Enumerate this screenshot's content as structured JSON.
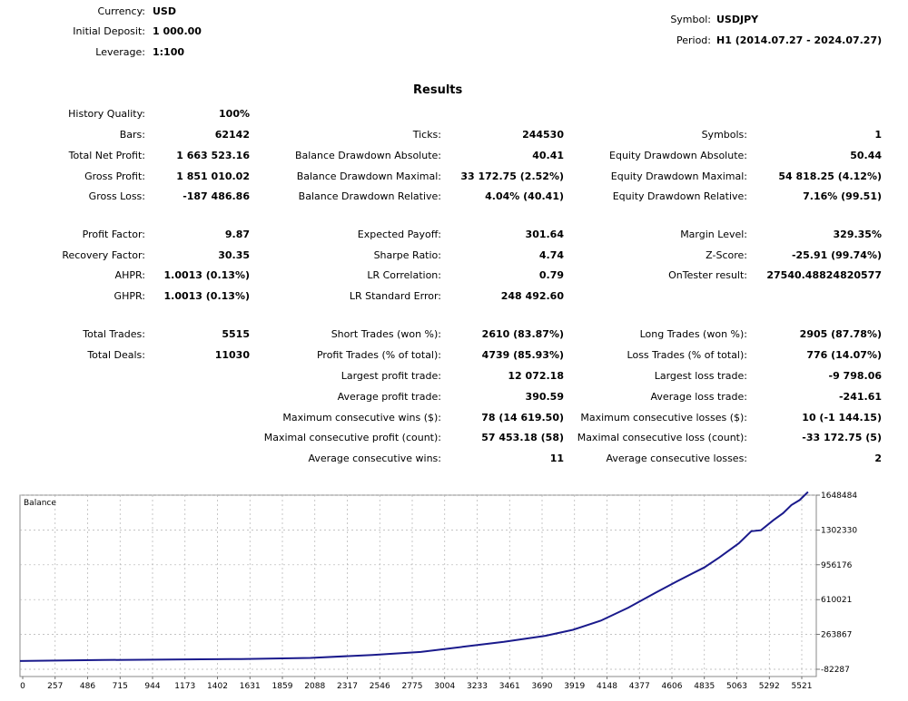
{
  "header": {
    "currency_label": "Currency:",
    "currency_value": "USD",
    "deposit_label": "Initial Deposit:",
    "deposit_value": "1 000.00",
    "leverage_label": "Leverage:",
    "leverage_value": "1:100",
    "symbol_label": "Symbol:",
    "symbol_value": "USDJPY",
    "period_label": "Period:",
    "period_value": "H1 (2014.07.27 - 2024.07.27)"
  },
  "results_title": "Results",
  "history_quality": {
    "label": "History Quality:",
    "value": "100%"
  },
  "stats": {
    "col1": [
      {
        "label": "Bars:",
        "value": "62142"
      },
      {
        "label": "Total Net Profit:",
        "value": "1 663 523.16"
      },
      {
        "label": "Gross Profit:",
        "value": "1 851 010.02"
      },
      {
        "label": "Gross Loss:",
        "value": "-187 486.86"
      },
      {
        "label": "Profit Factor:",
        "value": "9.87"
      },
      {
        "label": "Recovery Factor:",
        "value": "30.35"
      },
      {
        "label": "AHPR:",
        "value": "1.0013 (0.13%)"
      },
      {
        "label": "GHPR:",
        "value": "1.0013 (0.13%)"
      },
      {
        "label": "Total Trades:",
        "value": "5515"
      },
      {
        "label": "Total Deals:",
        "value": "11030"
      }
    ],
    "col2": [
      {
        "label": "Ticks:",
        "value": "244530"
      },
      {
        "label": "Balance Drawdown Absolute:",
        "value": "40.41"
      },
      {
        "label": "Balance Drawdown Maximal:",
        "value": "33 172.75 (2.52%)"
      },
      {
        "label": "Balance Drawdown Relative:",
        "value": "4.04% (40.41)"
      },
      {
        "label": "Expected Payoff:",
        "value": "301.64"
      },
      {
        "label": "Sharpe Ratio:",
        "value": "4.74"
      },
      {
        "label": "LR Correlation:",
        "value": "0.79"
      },
      {
        "label": "LR Standard Error:",
        "value": "248 492.60"
      },
      {
        "label": "Short Trades (won %):",
        "value": "2610 (83.87%)"
      },
      {
        "label": "Profit Trades (% of total):",
        "value": "4739 (85.93%)"
      },
      {
        "label": "Largest profit trade:",
        "value": "12 072.18"
      },
      {
        "label": "Average profit trade:",
        "value": "390.59"
      },
      {
        "label": "Maximum consecutive wins ($):",
        "value": "78 (14 619.50)"
      },
      {
        "label": "Maximal consecutive profit (count):",
        "value": "57 453.18 (58)"
      },
      {
        "label": "Average consecutive wins:",
        "value": "11"
      }
    ],
    "col3": [
      {
        "label": "Symbols:",
        "value": "1"
      },
      {
        "label": "Equity Drawdown Absolute:",
        "value": "50.44"
      },
      {
        "label": "Equity Drawdown Maximal:",
        "value": "54 818.25 (4.12%)"
      },
      {
        "label": "Equity Drawdown Relative:",
        "value": "7.16% (99.51)"
      },
      {
        "label": "Margin Level:",
        "value": "329.35%"
      },
      {
        "label": "Z-Score:",
        "value": "-25.91 (99.74%)"
      },
      {
        "label": "OnTester result:",
        "value": "27540.48824820577"
      },
      {
        "label": "Long Trades (won %):",
        "value": "2905 (87.78%)"
      },
      {
        "label": "Loss Trades (% of total):",
        "value": "776 (14.07%)"
      },
      {
        "label": "Largest loss trade:",
        "value": "-9 798.06"
      },
      {
        "label": "Average loss trade:",
        "value": "-241.61"
      },
      {
        "label": "Maximum consecutive losses ($):",
        "value": "10 (-1 144.15)"
      },
      {
        "label": "Maximal consecutive loss (count):",
        "value": "-33 172.75 (5)"
      },
      {
        "label": "Average consecutive losses:",
        "value": "2"
      }
    ]
  },
  "chart_data": {
    "type": "line",
    "title": "Balance",
    "line_color": "#1a1a8c",
    "grid": true,
    "x_ticks": [
      "0",
      "257",
      "486",
      "715",
      "944",
      "1173",
      "1402",
      "1631",
      "1859",
      "2088",
      "2317",
      "2546",
      "2775",
      "3004",
      "3233",
      "3461",
      "3690",
      "3919",
      "4148",
      "4377",
      "4606",
      "4835",
      "5063",
      "5292",
      "5521"
    ],
    "y_ticks": [
      "1648484",
      "1302330",
      "956176",
      "610021",
      "263867",
      "-82287"
    ],
    "xlim": [
      0,
      5760
    ],
    "ylim": [
      -82287,
      1648484
    ],
    "series": [
      {
        "x": [
          0,
          600,
          1100,
          1600,
          2100,
          2550,
          2900,
          3200,
          3500,
          3800,
          4000,
          4200,
          4400,
          4600,
          4750,
          4950,
          5060,
          5200,
          5290,
          5360,
          5450,
          5520,
          5580,
          5640,
          5700
        ],
        "y": [
          0,
          10000,
          15000,
          20000,
          30000,
          60000,
          90000,
          140000,
          190000,
          250000,
          310000,
          400000,
          530000,
          680000,
          790000,
          930000,
          1030000,
          1170000,
          1290000,
          1300000,
          1400000,
          1470000,
          1550000,
          1600000,
          1680000
        ]
      }
    ]
  }
}
